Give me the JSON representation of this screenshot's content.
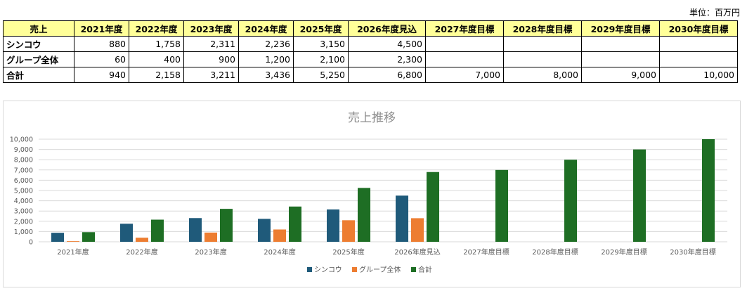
{
  "unit_label": "単位：百万円",
  "table": {
    "headers": [
      "売上",
      "2021年度",
      "2022年度",
      "2023年度",
      "2024年度",
      "2025年度",
      "2026年度見込",
      "2027年度目標",
      "2028年度目標",
      "2029年度目標",
      "2030年度目標"
    ],
    "rows": [
      {
        "label": "シンコウ",
        "values": [
          "880",
          "1,758",
          "2,311",
          "2,236",
          "3,150",
          "4,500",
          "",
          "",
          "",
          ""
        ]
      },
      {
        "label": "グループ全体",
        "values": [
          "60",
          "400",
          "900",
          "1,200",
          "2,100",
          "2,300",
          "",
          "",
          "",
          ""
        ]
      },
      {
        "label": "合計",
        "values": [
          "940",
          "2,158",
          "3,211",
          "3,436",
          "5,250",
          "6,800",
          "7,000",
          "8,000",
          "9,000",
          "10,000"
        ]
      }
    ]
  },
  "chart_data": {
    "type": "bar",
    "title": "売上推移",
    "categories": [
      "2021年度",
      "2022年度",
      "2023年度",
      "2024年度",
      "2025年度",
      "2026年度見込",
      "2027年度目標",
      "2028年度目標",
      "2029年度目標",
      "2030年度目標"
    ],
    "series": [
      {
        "name": "シンコウ",
        "color": "#1f5a7a",
        "values": [
          880,
          1758,
          2311,
          2236,
          3150,
          4500,
          null,
          null,
          null,
          null
        ]
      },
      {
        "name": "グループ全体",
        "color": "#ed7d31",
        "values": [
          60,
          400,
          900,
          1200,
          2100,
          2300,
          null,
          null,
          null,
          null
        ]
      },
      {
        "name": "合計",
        "color": "#1e6e24",
        "values": [
          940,
          2158,
          3211,
          3436,
          5250,
          6800,
          7000,
          8000,
          9000,
          10000
        ]
      }
    ],
    "ylim": [
      0,
      10000
    ],
    "yticks": [
      "0",
      "1,000",
      "2,000",
      "3,000",
      "4,000",
      "5,000",
      "6,000",
      "7,000",
      "8,000",
      "9,000",
      "10,000"
    ],
    "grid": true,
    "legend_position": "bottom"
  }
}
